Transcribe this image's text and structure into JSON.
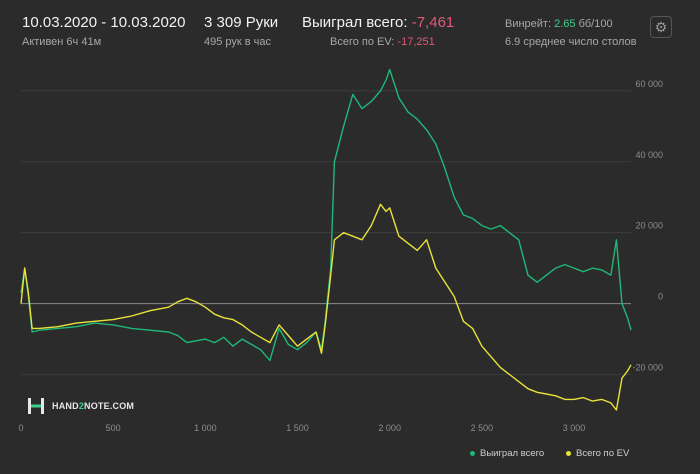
{
  "header": {
    "date_range": "10.03.2020 - 10.03.2020",
    "active": "Активен 6ч 41м",
    "hands": "3 309 Руки",
    "hands_per_hour": "495 рук в час",
    "won_label": "Выиграл всего:",
    "won_value": "-7,461",
    "ev_label": "Всего по EV:",
    "ev_value": "-17,251",
    "winrate_label": "Винрейт:",
    "winrate_value": "2.65",
    "winrate_unit": "бб/100",
    "tables_avg": "6.9 среднее число столов"
  },
  "icons": {
    "settings": "gear-icon",
    "logo": "hand2note-logo-icon"
  },
  "brand": {
    "name_prefix": "HAND",
    "name_mid": "2",
    "name_suffix": "NOTE.COM"
  },
  "legend": {
    "won": "Выиграл всего",
    "ev": "Всего по EV"
  },
  "colors": {
    "won": "#1fb87a",
    "ev": "#e8e33a",
    "background": "#2b2b2b",
    "negative": "#e05a7a",
    "positive": "#3ecf8e"
  },
  "chart_data": {
    "type": "line",
    "x_ticks": [
      0,
      500,
      1000,
      1500,
      2000,
      2500,
      3000
    ],
    "x_tick_labels": [
      "0",
      "500",
      "1 000",
      "1 500",
      "2 000",
      "2 500",
      "3 000"
    ],
    "y_ticks": [
      -20000,
      0,
      20000,
      40000,
      60000
    ],
    "y_tick_labels": [
      "-20 000",
      "0",
      "20 000",
      "40 000",
      "60 000"
    ],
    "xlim": [
      0,
      3309
    ],
    "ylim": [
      -30000,
      67000
    ],
    "grid": "horizontal",
    "legend_position": "bottom-right",
    "series": [
      {
        "name": "Выиграл всего",
        "x": [
          0,
          20,
          40,
          60,
          100,
          200,
          300,
          400,
          500,
          600,
          700,
          800,
          850,
          900,
          950,
          1000,
          1050,
          1100,
          1150,
          1200,
          1250,
          1300,
          1350,
          1400,
          1450,
          1500,
          1550,
          1600,
          1630,
          1650,
          1680,
          1700,
          1750,
          1800,
          1850,
          1900,
          1950,
          1980,
          2000,
          2050,
          2100,
          2150,
          2200,
          2250,
          2300,
          2350,
          2400,
          2450,
          2500,
          2550,
          2600,
          2650,
          2700,
          2750,
          2800,
          2850,
          2900,
          2950,
          3000,
          3050,
          3100,
          3150,
          3200,
          3230,
          3260,
          3290,
          3309
        ],
        "y": [
          3000,
          10000,
          2000,
          -8000,
          -7500,
          -7000,
          -6500,
          -5500,
          -6000,
          -7000,
          -7500,
          -8000,
          -9000,
          -11000,
          -10500,
          -10000,
          -11000,
          -9500,
          -12000,
          -10000,
          -11500,
          -13000,
          -16000,
          -7000,
          -11500,
          -13000,
          -11000,
          -8000,
          -13000,
          -5000,
          10000,
          40000,
          50000,
          59000,
          55000,
          57000,
          60000,
          63000,
          66000,
          58000,
          54000,
          52000,
          49000,
          45000,
          38000,
          30000,
          25000,
          24000,
          22000,
          21000,
          22000,
          20000,
          18000,
          8000,
          6000,
          8000,
          10000,
          11000,
          10000,
          9000,
          10000,
          9500,
          8000,
          18000,
          0,
          -4000,
          -7461
        ]
      },
      {
        "name": "Всего по EV",
        "x": [
          0,
          20,
          40,
          60,
          100,
          200,
          300,
          400,
          500,
          600,
          700,
          800,
          850,
          900,
          950,
          1000,
          1050,
          1100,
          1150,
          1200,
          1250,
          1300,
          1350,
          1400,
          1450,
          1500,
          1550,
          1600,
          1630,
          1650,
          1680,
          1700,
          1750,
          1800,
          1850,
          1900,
          1950,
          1980,
          2000,
          2050,
          2100,
          2150,
          2200,
          2250,
          2300,
          2350,
          2400,
          2450,
          2500,
          2550,
          2600,
          2650,
          2700,
          2750,
          2800,
          2850,
          2900,
          2950,
          3000,
          3050,
          3100,
          3150,
          3200,
          3230,
          3260,
          3290,
          3309
        ],
        "y": [
          0,
          10000,
          3000,
          -7000,
          -7000,
          -6500,
          -5500,
          -5000,
          -4500,
          -3500,
          -2000,
          -1000,
          500,
          1500,
          500,
          -1000,
          -3000,
          -4000,
          -4500,
          -6000,
          -8000,
          -9500,
          -11000,
          -6000,
          -9000,
          -12000,
          -10000,
          -8000,
          -14000,
          -6000,
          8000,
          18000,
          20000,
          19000,
          18000,
          22000,
          28000,
          26000,
          27000,
          19000,
          17000,
          15000,
          18000,
          10000,
          6000,
          2000,
          -5000,
          -7000,
          -12000,
          -15000,
          -18000,
          -20000,
          -22000,
          -24000,
          -25000,
          -25500,
          -26000,
          -27000,
          -27000,
          -26500,
          -27500,
          -27000,
          -28000,
          -30000,
          -21000,
          -19000,
          -17251
        ]
      }
    ]
  }
}
